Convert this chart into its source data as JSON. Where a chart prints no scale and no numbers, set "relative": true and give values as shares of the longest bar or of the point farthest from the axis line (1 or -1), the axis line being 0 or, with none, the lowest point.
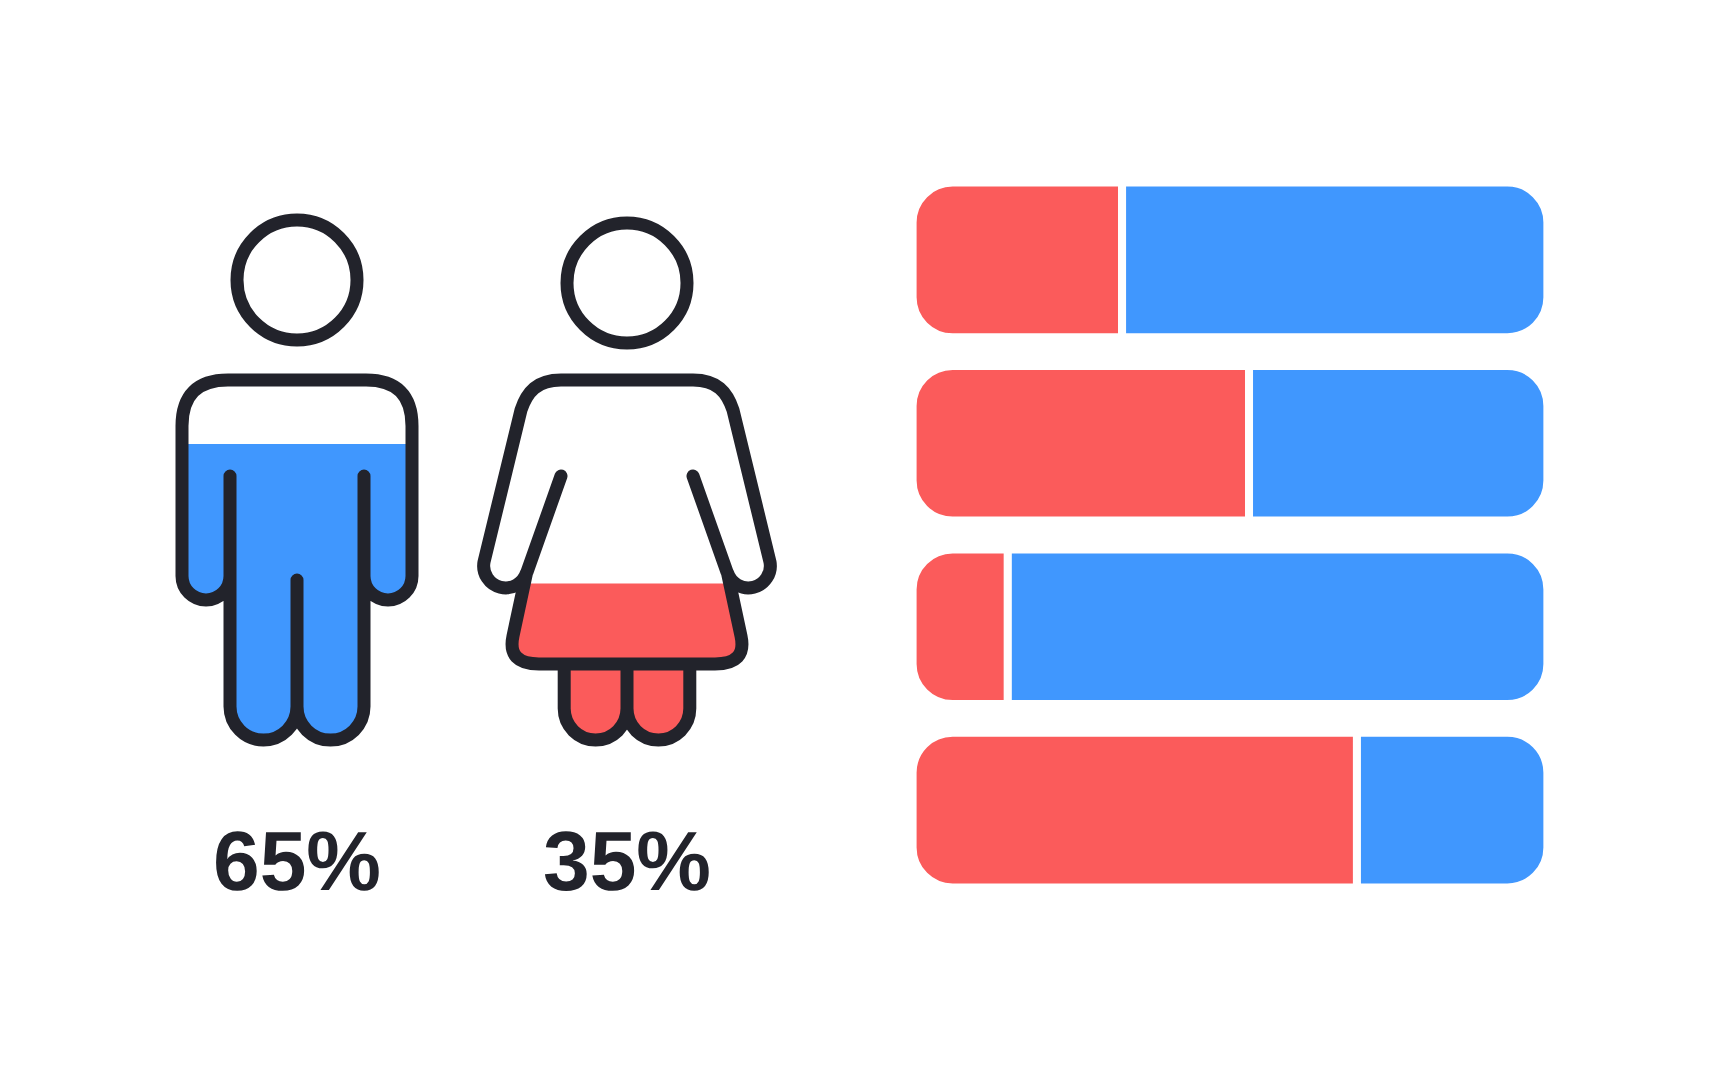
{
  "chart_data": [
    {
      "type": "bar",
      "categories": [
        null,
        null
      ],
      "values": [
        65,
        35
      ],
      "colors": [
        "#4097fe",
        "#fb5b5b"
      ],
      "value_labels": [
        "65%",
        "35%"
      ],
      "tick_labels": false
    },
    {
      "type": "bar",
      "orientation": "horizontal",
      "stacked": true,
      "relative": true,
      "categories": [
        null,
        null,
        null,
        null
      ],
      "series": [
        {
          "color": "#fb5b5b",
          "values": [
            0.33,
            0.53,
            0.15,
            0.7
          ]
        },
        {
          "color": "#4097fe",
          "values": [
            0.67,
            0.47,
            0.85,
            0.3
          ]
        }
      ]
    }
  ]
}
